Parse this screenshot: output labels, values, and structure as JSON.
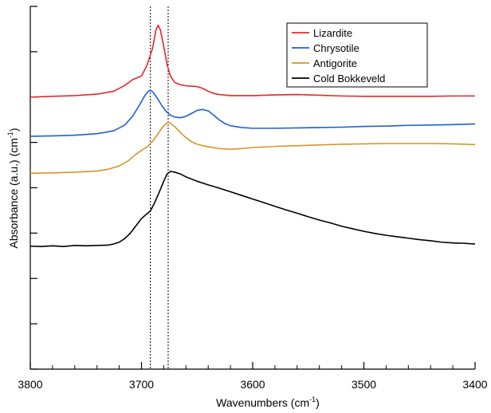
{
  "chart_data": {
    "type": "line",
    "xlabel": "Wavenumbers (cm",
    "xlabel_sup": "-1",
    "xlabel_close": ")",
    "ylabel": "Absorbance (a.u.) (cm",
    "ylabel_sup": "-1",
    "ylabel_close": ")",
    "xlim": [
      3800,
      3400
    ],
    "x_reversed": true,
    "ylim": [
      0,
      1
    ],
    "y_tick_labels": false,
    "x_ticks": [
      3800,
      3700,
      3600,
      3500,
      3400
    ],
    "x_tick_labels": [
      "3800",
      "3700",
      "3600",
      "3500",
      "3400"
    ],
    "y_ticks": [
      0.0,
      0.125,
      0.25,
      0.375,
      0.5,
      0.625,
      0.75,
      0.875,
      1.0
    ],
    "grid": false,
    "legend_position": "top-right",
    "vertical_lines": [
      3692,
      3676
    ],
    "series": [
      {
        "name": "Lizardite",
        "color": "#e8262a",
        "points": [
          [
            3800,
            0.75
          ],
          [
            3780,
            0.752
          ],
          [
            3760,
            0.754
          ],
          [
            3740,
            0.758
          ],
          [
            3725,
            0.766
          ],
          [
            3715,
            0.782
          ],
          [
            3708,
            0.798
          ],
          [
            3700,
            0.808
          ],
          [
            3695,
            0.838
          ],
          [
            3690,
            0.885
          ],
          [
            3687,
            0.935
          ],
          [
            3685,
            0.948
          ],
          [
            3683,
            0.935
          ],
          [
            3680,
            0.89
          ],
          [
            3677,
            0.84
          ],
          [
            3674,
            0.808
          ],
          [
            3670,
            0.79
          ],
          [
            3665,
            0.784
          ],
          [
            3660,
            0.781
          ],
          [
            3655,
            0.78
          ],
          [
            3650,
            0.779
          ],
          [
            3645,
            0.774
          ],
          [
            3640,
            0.766
          ],
          [
            3635,
            0.76
          ],
          [
            3630,
            0.757
          ],
          [
            3620,
            0.754
          ],
          [
            3600,
            0.754
          ],
          [
            3580,
            0.756
          ],
          [
            3560,
            0.757
          ],
          [
            3540,
            0.755
          ],
          [
            3520,
            0.753
          ],
          [
            3500,
            0.752
          ],
          [
            3480,
            0.752
          ],
          [
            3460,
            0.752
          ],
          [
            3440,
            0.752
          ],
          [
            3420,
            0.753
          ],
          [
            3400,
            0.753
          ]
        ]
      },
      {
        "name": "Chrysotile",
        "color": "#1f5fd6",
        "points": [
          [
            3800,
            0.642
          ],
          [
            3780,
            0.643
          ],
          [
            3760,
            0.645
          ],
          [
            3740,
            0.649
          ],
          [
            3725,
            0.657
          ],
          [
            3715,
            0.673
          ],
          [
            3708,
            0.697
          ],
          [
            3702,
            0.727
          ],
          [
            3697,
            0.754
          ],
          [
            3694,
            0.766
          ],
          [
            3692,
            0.768
          ],
          [
            3690,
            0.765
          ],
          [
            3686,
            0.748
          ],
          [
            3682,
            0.728
          ],
          [
            3678,
            0.711
          ],
          [
            3674,
            0.7
          ],
          [
            3670,
            0.695
          ],
          [
            3665,
            0.693
          ],
          [
            3660,
            0.697
          ],
          [
            3655,
            0.705
          ],
          [
            3650,
            0.713
          ],
          [
            3645,
            0.716
          ],
          [
            3640,
            0.712
          ],
          [
            3635,
            0.7
          ],
          [
            3630,
            0.687
          ],
          [
            3625,
            0.677
          ],
          [
            3620,
            0.671
          ],
          [
            3610,
            0.666
          ],
          [
            3600,
            0.664
          ],
          [
            3580,
            0.664
          ],
          [
            3560,
            0.665
          ],
          [
            3540,
            0.666
          ],
          [
            3520,
            0.667
          ],
          [
            3500,
            0.669
          ],
          [
            3480,
            0.67
          ],
          [
            3460,
            0.672
          ],
          [
            3440,
            0.673
          ],
          [
            3420,
            0.674
          ],
          [
            3400,
            0.676
          ]
        ]
      },
      {
        "name": "Antigorite",
        "color": "#d4952b",
        "points": [
          [
            3800,
            0.54
          ],
          [
            3780,
            0.541
          ],
          [
            3760,
            0.543
          ],
          [
            3740,
            0.546
          ],
          [
            3730,
            0.551
          ],
          [
            3720,
            0.56
          ],
          [
            3712,
            0.574
          ],
          [
            3706,
            0.59
          ],
          [
            3700,
            0.603
          ],
          [
            3694,
            0.615
          ],
          [
            3690,
            0.628
          ],
          [
            3686,
            0.645
          ],
          [
            3682,
            0.663
          ],
          [
            3678,
            0.677
          ],
          [
            3676,
            0.68
          ],
          [
            3674,
            0.678
          ],
          [
            3670,
            0.668
          ],
          [
            3665,
            0.652
          ],
          [
            3660,
            0.638
          ],
          [
            3655,
            0.627
          ],
          [
            3650,
            0.62
          ],
          [
            3645,
            0.616
          ],
          [
            3640,
            0.613
          ],
          [
            3630,
            0.608
          ],
          [
            3620,
            0.606
          ],
          [
            3610,
            0.608
          ],
          [
            3600,
            0.611
          ],
          [
            3580,
            0.614
          ],
          [
            3560,
            0.616
          ],
          [
            3540,
            0.618
          ],
          [
            3520,
            0.62
          ],
          [
            3500,
            0.621
          ],
          [
            3480,
            0.622
          ],
          [
            3460,
            0.622
          ],
          [
            3440,
            0.622
          ],
          [
            3420,
            0.621
          ],
          [
            3400,
            0.619
          ]
        ]
      },
      {
        "name": "Cold Bokkeveld",
        "color": "#000000",
        "points": [
          [
            3800,
            0.339
          ],
          [
            3790,
            0.338
          ],
          [
            3780,
            0.34
          ],
          [
            3770,
            0.338
          ],
          [
            3760,
            0.341
          ],
          [
            3750,
            0.34
          ],
          [
            3740,
            0.341
          ],
          [
            3730,
            0.342
          ],
          [
            3725,
            0.345
          ],
          [
            3720,
            0.35
          ],
          [
            3715,
            0.36
          ],
          [
            3710,
            0.375
          ],
          [
            3705,
            0.395
          ],
          [
            3700,
            0.415
          ],
          [
            3696,
            0.426
          ],
          [
            3692,
            0.436
          ],
          [
            3688,
            0.46
          ],
          [
            3684,
            0.488
          ],
          [
            3680,
            0.518
          ],
          [
            3677,
            0.538
          ],
          [
            3674,
            0.545
          ],
          [
            3670,
            0.543
          ],
          [
            3665,
            0.538
          ],
          [
            3660,
            0.53
          ],
          [
            3655,
            0.524
          ],
          [
            3650,
            0.518
          ],
          [
            3640,
            0.508
          ],
          [
            3630,
            0.499
          ],
          [
            3620,
            0.489
          ],
          [
            3610,
            0.479
          ],
          [
            3600,
            0.469
          ],
          [
            3590,
            0.459
          ],
          [
            3580,
            0.449
          ],
          [
            3570,
            0.439
          ],
          [
            3560,
            0.43
          ],
          [
            3550,
            0.42
          ],
          [
            3540,
            0.411
          ],
          [
            3530,
            0.403
          ],
          [
            3520,
            0.394
          ],
          [
            3510,
            0.387
          ],
          [
            3500,
            0.38
          ],
          [
            3490,
            0.374
          ],
          [
            3480,
            0.369
          ],
          [
            3470,
            0.365
          ],
          [
            3460,
            0.361
          ],
          [
            3450,
            0.357
          ],
          [
            3440,
            0.354
          ],
          [
            3430,
            0.35
          ],
          [
            3420,
            0.348
          ],
          [
            3410,
            0.347
          ],
          [
            3400,
            0.345
          ]
        ]
      }
    ]
  }
}
